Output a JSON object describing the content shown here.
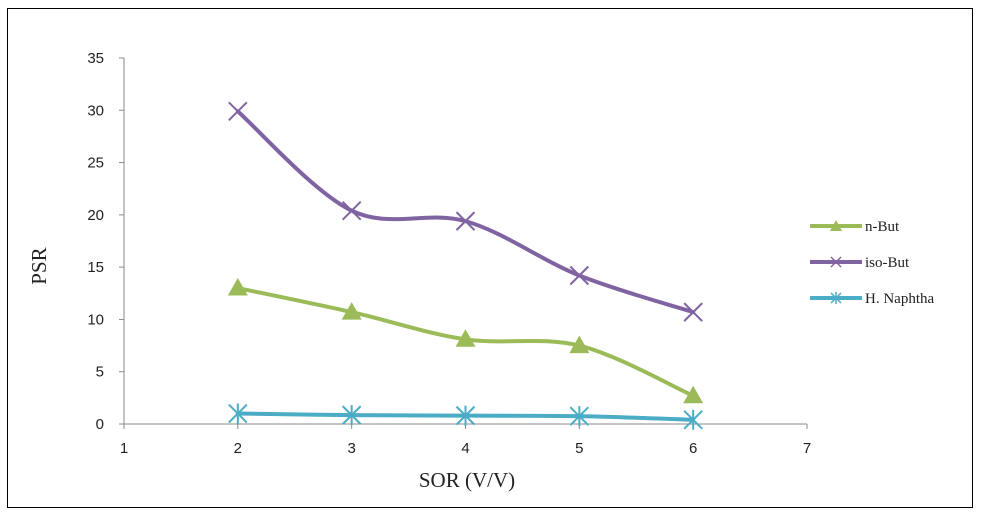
{
  "chart_data": {
    "type": "line",
    "xlabel": "SOR (V/V)",
    "ylabel": "PSR",
    "xlim": [
      1,
      7
    ],
    "ylim": [
      0,
      35
    ],
    "xticks": [
      "1",
      "2",
      "3",
      "4",
      "5",
      "6",
      "7"
    ],
    "yticks": [
      "0",
      "5",
      "10",
      "15",
      "20",
      "25",
      "30",
      "35"
    ],
    "grid": false,
    "smooth": true,
    "legend_position": "right",
    "series": [
      {
        "name": "n-But",
        "color": "#9bbb59",
        "marker": "triangle",
        "points": [
          {
            "x": 2,
            "y": 13.0
          },
          {
            "x": 3,
            "y": 10.7
          },
          {
            "x": 4,
            "y": 8.1
          },
          {
            "x": 5,
            "y": 7.5
          },
          {
            "x": 6,
            "y": 2.7
          }
        ]
      },
      {
        "name": "iso-But",
        "color": "#8064a2",
        "marker": "x",
        "points": [
          {
            "x": 2,
            "y": 29.9
          },
          {
            "x": 3,
            "y": 20.4
          },
          {
            "x": 4,
            "y": 19.4
          },
          {
            "x": 5,
            "y": 14.2
          },
          {
            "x": 6,
            "y": 10.7
          }
        ]
      },
      {
        "name": "H. Naphtha",
        "color": "#4bacc6",
        "marker": "star",
        "points": [
          {
            "x": 2,
            "y": 1.0
          },
          {
            "x": 3,
            "y": 0.85
          },
          {
            "x": 4,
            "y": 0.8
          },
          {
            "x": 5,
            "y": 0.75
          },
          {
            "x": 6,
            "y": 0.4
          }
        ]
      }
    ]
  }
}
